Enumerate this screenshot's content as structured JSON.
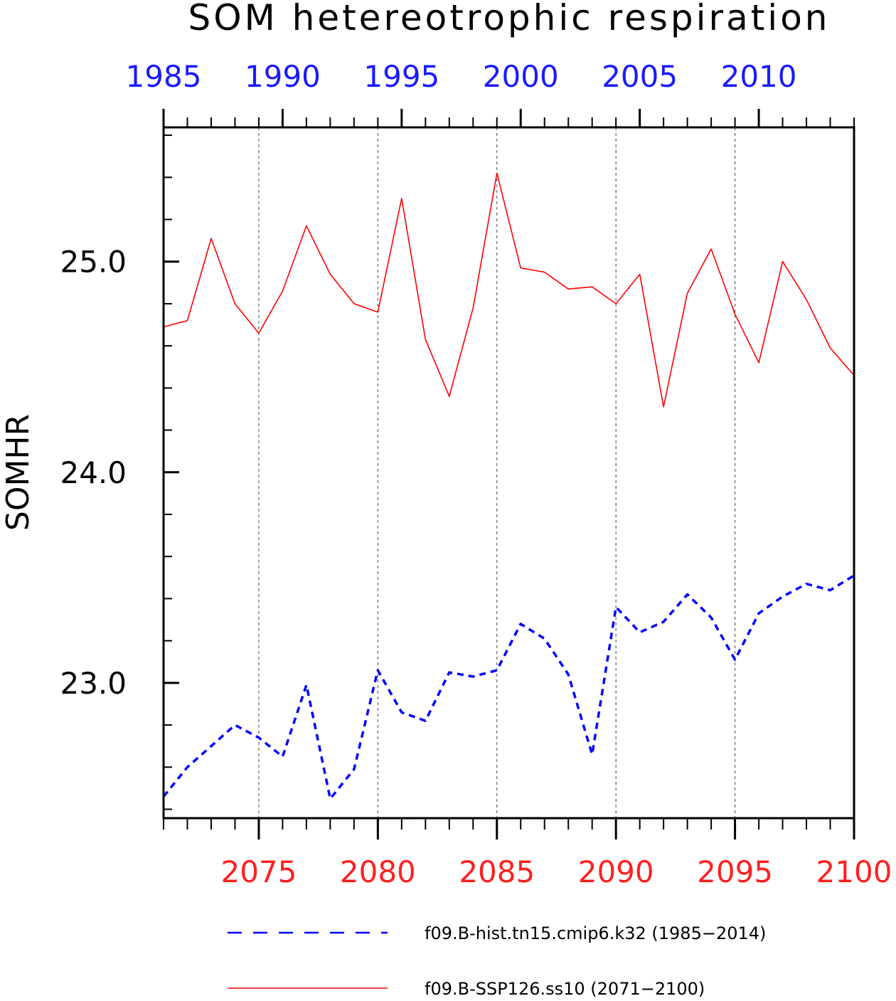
{
  "chart_data": {
    "type": "line",
    "title": "SOM hetereotrophic respiration",
    "ylabel": "SOMHR",
    "ylim": [
      22.3578,
      25.6373
    ],
    "y_ticks": [
      {
        "value": 23.0,
        "label": "23.0"
      },
      {
        "value": 24.0,
        "label": "24.0"
      },
      {
        "value": 25.0,
        "label": "25.0"
      }
    ],
    "y_minor_step": 0.2,
    "grid": "vertical dashed lines at labeled x ticks",
    "x_bottom": {
      "range": [
        2071,
        2100
      ],
      "ticks": [
        2075,
        2080,
        2085,
        2090,
        2095,
        2100
      ],
      "labels": [
        "2075",
        "2080",
        "2085",
        "2090",
        "2095",
        "2100"
      ],
      "color": "#ff2020"
    },
    "x_top": {
      "range": [
        1985,
        2014
      ],
      "ticks": [
        1985,
        1990,
        1995,
        2000,
        2005,
        2010
      ],
      "labels": [
        "1985",
        "1990",
        "1995",
        "2000",
        "2005",
        "2010"
      ],
      "color": "#1a1aff"
    },
    "series": [
      {
        "name": "f09.B-hist.tn15.cmip6.k32 (1985−2014)",
        "axis": "top",
        "color": "#0000ff",
        "style": "dashed",
        "x": [
          1985,
          1986,
          1987,
          1988,
          1989,
          1990,
          1991,
          1992,
          1993,
          1994,
          1995,
          1996,
          1997,
          1998,
          1999,
          2000,
          2001,
          2002,
          2003,
          2004,
          2005,
          2006,
          2007,
          2008,
          2009,
          2010,
          2011,
          2012,
          2013,
          2014
        ],
        "values": [
          22.46,
          22.6,
          22.7,
          22.8,
          22.74,
          22.65,
          22.99,
          22.45,
          22.59,
          23.06,
          22.86,
          22.82,
          23.05,
          23.03,
          23.06,
          23.28,
          23.21,
          23.04,
          22.66,
          23.36,
          23.24,
          23.29,
          23.42,
          23.31,
          23.11,
          23.33,
          23.41,
          23.47,
          23.44,
          23.51
        ]
      },
      {
        "name": "f09.B-SSP126.ss10 (2071−2100)",
        "axis": "bottom",
        "color": "#ff0000",
        "style": "solid",
        "x": [
          2071,
          2072,
          2073,
          2074,
          2075,
          2076,
          2077,
          2078,
          2079,
          2080,
          2081,
          2082,
          2083,
          2084,
          2085,
          2086,
          2087,
          2088,
          2089,
          2090,
          2091,
          2092,
          2093,
          2094,
          2095,
          2096,
          2097,
          2098,
          2099,
          2100
        ],
        "values": [
          24.69,
          24.72,
          25.11,
          24.8,
          24.66,
          24.86,
          25.17,
          24.94,
          24.8,
          24.76,
          25.3,
          24.63,
          24.36,
          24.78,
          25.42,
          24.97,
          24.95,
          24.87,
          24.88,
          24.8,
          24.94,
          24.31,
          24.85,
          25.06,
          24.75,
          24.52,
          25.0,
          24.82,
          24.59,
          24.46
        ]
      }
    ],
    "legend_position": "bottom"
  }
}
